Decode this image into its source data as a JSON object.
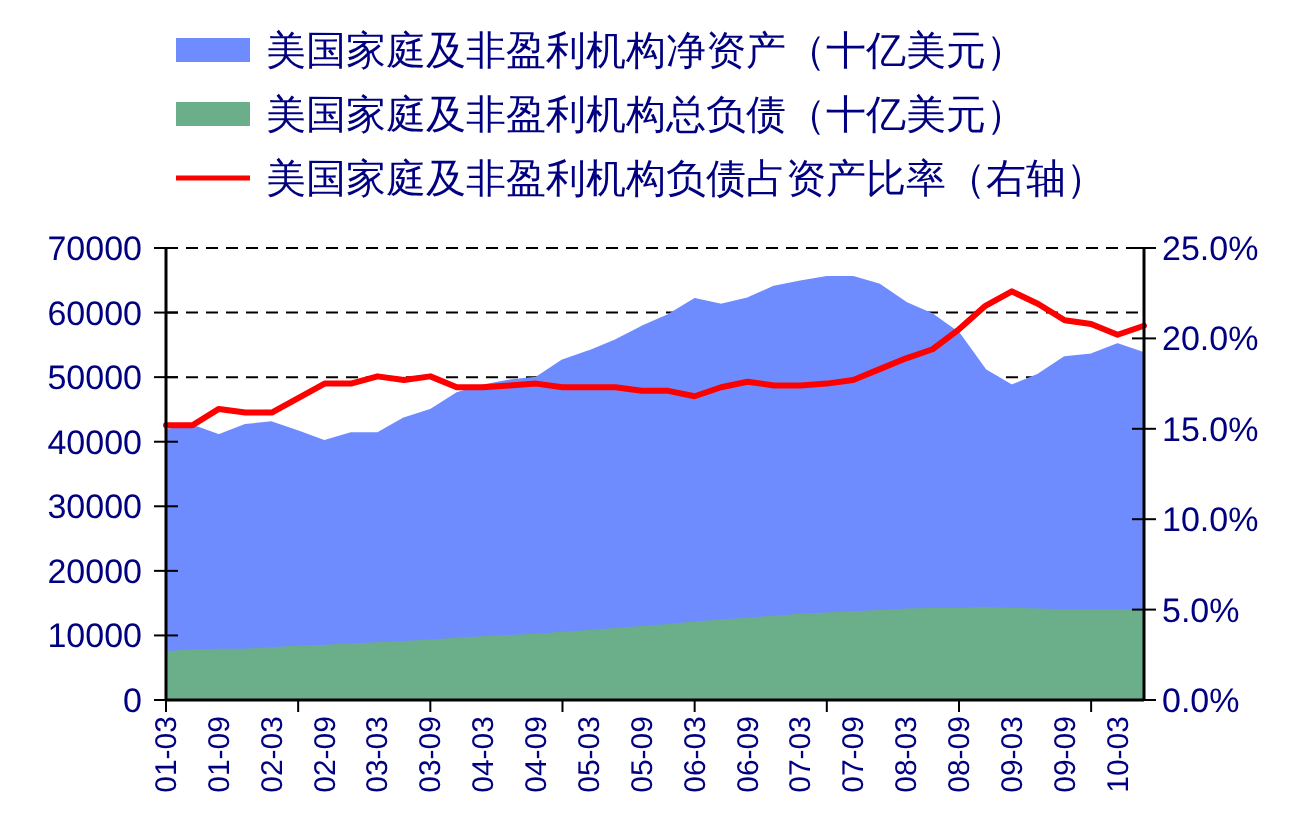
{
  "chart_data": {
    "type": "area",
    "categories": [
      "01-03",
      null,
      "01-09",
      null,
      "02-03",
      null,
      "02-09",
      null,
      "03-03",
      null,
      "03-09",
      null,
      "04-03",
      null,
      "04-09",
      null,
      "05-03",
      null,
      "05-09",
      null,
      "06-03",
      null,
      "06-09",
      null,
      "07-03",
      null,
      "07-09",
      null,
      "08-03",
      null,
      "08-09",
      null,
      "09-03",
      null,
      "09-09",
      null,
      "10-03",
      null
    ],
    "ylim": [
      0,
      70000
    ],
    "yticks": [
      0,
      10000,
      20000,
      30000,
      40000,
      50000,
      60000,
      70000
    ],
    "y2lim": [
      0,
      25
    ],
    "y2ticks": [
      {
        "value": 0,
        "label": "0.0%"
      },
      {
        "value": 5,
        "label": "5.0%"
      },
      {
        "value": 10,
        "label": "10.0%"
      },
      {
        "value": 15,
        "label": "15.0%"
      },
      {
        "value": 20,
        "label": "20.0%"
      },
      {
        "value": 25,
        "label": "25.0%"
      }
    ],
    "grid": "y",
    "legend": "top",
    "series": [
      {
        "name": "美国家庭及非盈利机构净资产（十亿美元）",
        "color": "#6f8cff",
        "values": [
          41800,
          42500,
          41000,
          42600,
          43000,
          41600,
          40100,
          41300,
          41300,
          43600,
          44900,
          47500,
          48700,
          49500,
          49900,
          52600,
          54000,
          55700,
          57800,
          59600,
          62100,
          61200,
          62200,
          64000,
          64800,
          65500,
          65500,
          64300,
          61500,
          59700,
          56800,
          51100,
          48700,
          50400,
          53100,
          53500,
          55100,
          53700
        ]
      },
      {
        "name": "美国家庭及非盈利机构总负债（十亿美元）",
        "color": "#6aae8a",
        "values": [
          7400,
          7700,
          7800,
          7800,
          8000,
          8300,
          8400,
          8600,
          8800,
          9000,
          9200,
          9500,
          9700,
          9900,
          10100,
          10400,
          10700,
          11000,
          11300,
          11600,
          12000,
          12300,
          12600,
          12900,
          13200,
          13400,
          13600,
          13800,
          14000,
          14100,
          14100,
          14300,
          14100,
          14000,
          13900,
          13900,
          13900,
          13900
        ]
      },
      {
        "name": "美国家庭及非盈利机构负债占资产比率（右轴）",
        "type": "line",
        "axis": "y2",
        "color": "#ff0000",
        "values": [
          15.2,
          15.2,
          16.1,
          15.9,
          15.9,
          16.7,
          17.5,
          17.5,
          17.9,
          17.7,
          17.9,
          17.3,
          17.3,
          17.4,
          17.5,
          17.3,
          17.3,
          17.3,
          17.1,
          17.1,
          16.8,
          17.3,
          17.6,
          17.4,
          17.4,
          17.5,
          17.7,
          18.3,
          18.9,
          19.4,
          20.5,
          21.8,
          22.6,
          21.9,
          21.0,
          20.8,
          20.2,
          20.7
        ]
      }
    ]
  }
}
